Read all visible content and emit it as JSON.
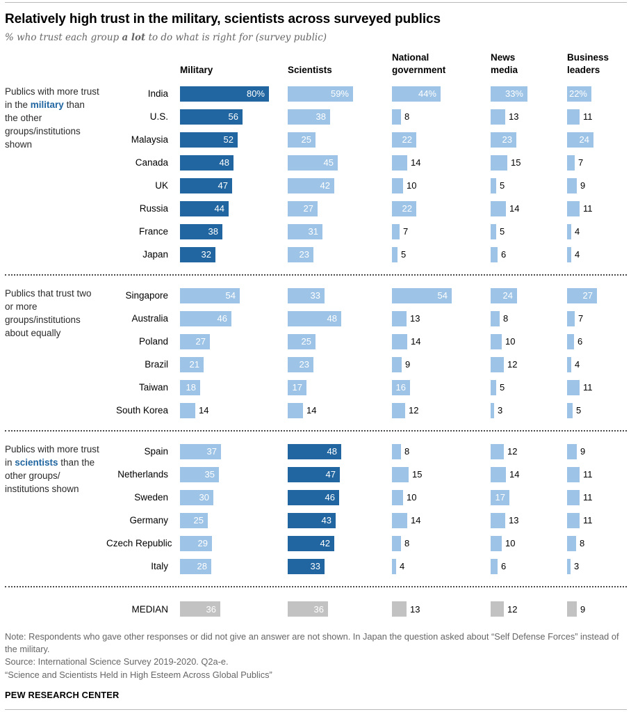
{
  "colors": {
    "dark_blue": "#2166a0",
    "light_blue": "#9dc3e6",
    "median_gray": "#c2c2c2",
    "highlight_text": "#2166a0",
    "inside_label": "#ffffff",
    "outside_label": "#000000"
  },
  "header": {
    "title": "Relatively high trust in the military, scientists across surveyed publics",
    "subtitle_parts": [
      {
        "text": "% who trust each group "
      },
      {
        "text": "a lot",
        "bold": true
      },
      {
        "text": " to do what is right for (survey public)"
      }
    ]
  },
  "chart_data": {
    "type": "bar",
    "orientation": "horizontal",
    "value_unit": "percent",
    "value_range": [
      0,
      80
    ],
    "inside_label_min": 16,
    "series_columns": [
      "Military",
      "Scientists",
      "National government",
      "News media",
      "Business leaders"
    ],
    "groups": [
      {
        "label_parts": [
          {
            "text": "Publics with more trust in the "
          },
          {
            "text": "military",
            "highlight": true
          },
          {
            "text": " than the other groups/institutions shown"
          }
        ],
        "dark_column": 0,
        "rows": [
          {
            "country": "India",
            "values": [
              80,
              59,
              44,
              33,
              22
            ],
            "suffix": "%"
          },
          {
            "country": "U.S.",
            "values": [
              56,
              38,
              8,
              13,
              11
            ]
          },
          {
            "country": "Malaysia",
            "values": [
              52,
              25,
              22,
              23,
              24
            ]
          },
          {
            "country": "Canada",
            "values": [
              48,
              45,
              14,
              15,
              7
            ]
          },
          {
            "country": "UK",
            "values": [
              47,
              42,
              10,
              5,
              9
            ]
          },
          {
            "country": "Russia",
            "values": [
              44,
              27,
              22,
              14,
              11
            ]
          },
          {
            "country": "France",
            "values": [
              38,
              31,
              7,
              5,
              4
            ]
          },
          {
            "country": "Japan",
            "values": [
              32,
              23,
              5,
              6,
              4
            ]
          }
        ]
      },
      {
        "label_parts": [
          {
            "text": "Publics that trust two or more groups/institutions about equally"
          }
        ],
        "dark_column": -1,
        "rows": [
          {
            "country": "Singapore",
            "values": [
              54,
              33,
              54,
              24,
              27
            ]
          },
          {
            "country": "Australia",
            "values": [
              46,
              48,
              13,
              8,
              7
            ]
          },
          {
            "country": "Poland",
            "values": [
              27,
              25,
              14,
              10,
              6
            ]
          },
          {
            "country": "Brazil",
            "values": [
              21,
              23,
              9,
              12,
              4
            ]
          },
          {
            "country": "Taiwan",
            "values": [
              18,
              17,
              16,
              5,
              11
            ]
          },
          {
            "country": "South Korea",
            "values": [
              14,
              14,
              12,
              3,
              5
            ]
          }
        ]
      },
      {
        "label_parts": [
          {
            "text": "Publics with more trust in "
          },
          {
            "text": "scientists",
            "highlight": true
          },
          {
            "text": " than the other groups/ institutions shown"
          }
        ],
        "dark_column": 1,
        "rows": [
          {
            "country": "Spain",
            "values": [
              37,
              48,
              8,
              12,
              9
            ]
          },
          {
            "country": "Netherlands",
            "values": [
              35,
              47,
              15,
              14,
              11
            ]
          },
          {
            "country": "Sweden",
            "values": [
              30,
              46,
              10,
              17,
              11
            ]
          },
          {
            "country": "Germany",
            "values": [
              25,
              43,
              14,
              13,
              11
            ]
          },
          {
            "country": "Czech Republic",
            "values": [
              29,
              42,
              8,
              10,
              8
            ]
          },
          {
            "country": "Italy",
            "values": [
              28,
              33,
              4,
              6,
              3
            ]
          }
        ]
      }
    ],
    "median": {
      "label": "MEDIAN",
      "values": [
        36,
        36,
        13,
        12,
        9
      ]
    }
  },
  "notes": [
    "Note: Respondents who gave other responses or did not give an answer are not shown. In Japan the question asked about “Self Defense Forces” instead of the military.",
    "Source: International Science Survey 2019-2020. Q2a-e.",
    "“Science and Scientists Held in High Esteem Across Global Publics”"
  ],
  "footer": "PEW RESEARCH CENTER"
}
